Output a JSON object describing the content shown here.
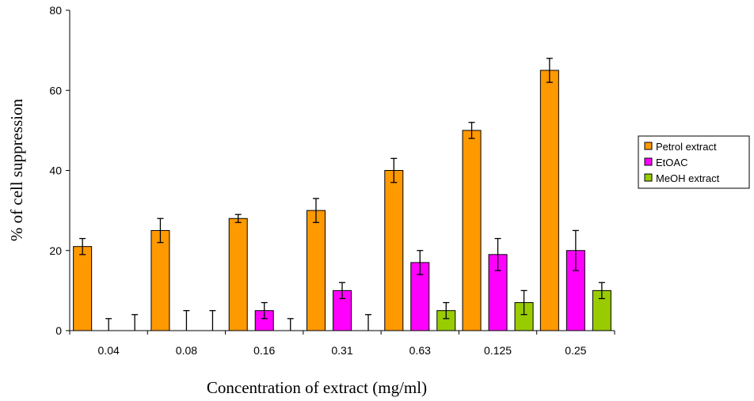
{
  "chart_data": {
    "type": "bar",
    "xlabel": "Concentration of extract (mg/ml)",
    "ylabel": "% of cell suppression",
    "ylim": [
      0,
      80
    ],
    "yticks": [
      "0",
      "20",
      "40",
      "60",
      "80"
    ],
    "categories": [
      "0.04",
      "0.08",
      "0.16",
      "0.31",
      "0.63",
      "0.125",
      "0.25"
    ],
    "grid": false,
    "legend_position": "right",
    "series": [
      {
        "name": "Petrol extract",
        "color": "#ff9900",
        "values": [
          21,
          25,
          28,
          30,
          40,
          50,
          65
        ],
        "errors": [
          2,
          3,
          1,
          3,
          3,
          2,
          3
        ]
      },
      {
        "name": "EtOAC",
        "color": "#ff00ff",
        "values": [
          0,
          0,
          5,
          10,
          17,
          19,
          20
        ],
        "errors": [
          3,
          5,
          2,
          2,
          3,
          4,
          5
        ]
      },
      {
        "name": "MeOH extract",
        "color": "#99cc00",
        "values": [
          0,
          0,
          0,
          0,
          5,
          7,
          10
        ],
        "errors": [
          4,
          5,
          3,
          4,
          2,
          3,
          2
        ]
      }
    ]
  }
}
